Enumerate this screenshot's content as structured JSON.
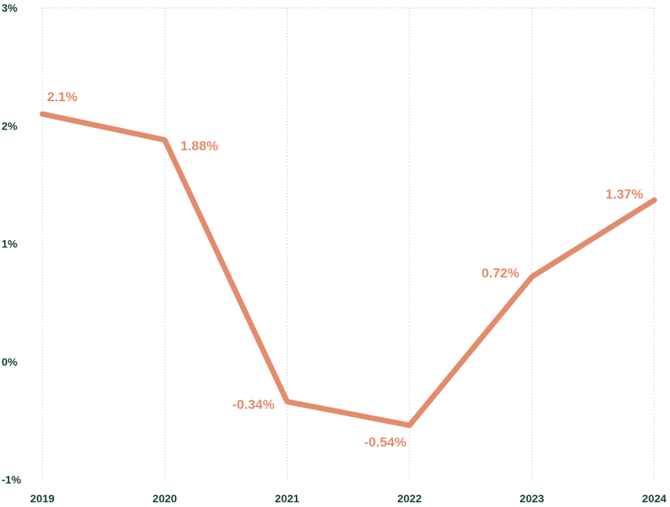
{
  "chart_data": {
    "type": "line",
    "title": "",
    "xlabel": "",
    "ylabel": "",
    "x": [
      "2019",
      "2020",
      "2021",
      "2022",
      "2023",
      "2024"
    ],
    "series": [
      {
        "values": [
          2.1,
          1.88,
          -0.34,
          -0.54,
          0.72,
          1.37
        ],
        "labels": [
          "2.1%",
          "1.88%",
          "-0.34%",
          "-0.54%",
          "0.72%",
          "1.37%"
        ],
        "color": "#e38b6d"
      }
    ],
    "ylim": [
      -1,
      3
    ],
    "yticks": [
      3,
      2,
      1,
      0,
      -1
    ],
    "ytick_labels": [
      "3%",
      "2%",
      "1%",
      "0%",
      "-1%"
    ],
    "grid": true,
    "colors": {
      "axis_text": "#16423c",
      "grid": "#c8c8c8",
      "line": "#e38b6d"
    }
  }
}
